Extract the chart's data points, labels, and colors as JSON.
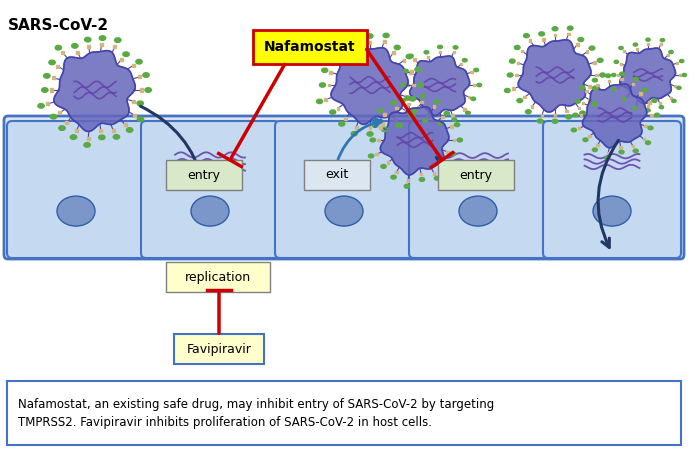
{
  "title": "SARS-CoV-2",
  "cell_color": "#c5d9f1",
  "cell_border_color": "#4472c4",
  "outer_cell_color": "#dce6f1",
  "nucleus_color": "#7b96c8",
  "nafamostat_box_color": "#ffff00",
  "nafamostat_text": "Nafamostat",
  "favipiravir_box_color": "#ffffcc",
  "favipiravir_text": "Favipiravir",
  "replication_box_color": "#ffffcc",
  "entry_box_color": "#d8e8c8",
  "exit_box_color": "#dce6f1",
  "red_arrow_color": "#cc0000",
  "dark_blue_color": "#1f3864",
  "blue_arrow_color": "#2e75b6",
  "virus_body_color": "#6666bb",
  "virus_outline_color": "#4444aa",
  "spike_base_color": "#d4b483",
  "spike_tip_color": "#5aaa44",
  "rna_color": "#6644aa",
  "caption_line1": "Nafamostat, an existing safe drug, may inhibit entry of SARS-CoV-2 by targeting",
  "caption_line2": "TMPRSS2. Favipiravir inhibits proliferation of SARS-CoV-2 in host cells.",
  "background_color": "#ffffff"
}
